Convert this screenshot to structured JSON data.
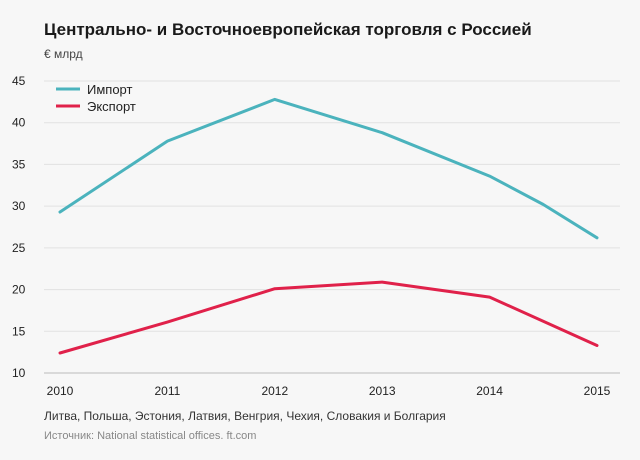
{
  "header": {
    "title": "Центрально- и Восточноевропейская торговля с Россией",
    "subtitle": "€ млрд"
  },
  "footer": {
    "note": "Литва, Польша, Эстония, Латвия, Венгрия, Чехия, Словакия и Болгария",
    "source": "Источник: National statistical offices. ft.com"
  },
  "chart_data": {
    "type": "line",
    "title": "Центрально- и Восточноевропейская торговля с Россией",
    "ylabel": "€ млрд",
    "xlabel": "",
    "x": [
      2010,
      2011,
      2012,
      2013,
      2014,
      2015
    ],
    "ylim": [
      10,
      45
    ],
    "yticks": [
      10,
      15,
      20,
      25,
      30,
      35,
      40,
      45
    ],
    "grid": true,
    "legend_position": "top-left",
    "series": [
      {
        "name": "Импорт",
        "color": "#4bb3bd",
        "x": [
          2010,
          2011,
          2012,
          2013,
          2014,
          2014.5,
          2015
        ],
        "values": [
          29.3,
          37.8,
          42.8,
          38.8,
          33.6,
          30.2,
          26.2
        ]
      },
      {
        "name": "Экспорт",
        "color": "#e0214a",
        "x": [
          2010,
          2011,
          2012,
          2013,
          2014,
          2015
        ],
        "values": [
          12.4,
          16.1,
          20.1,
          20.9,
          19.1,
          13.3
        ]
      }
    ]
  }
}
